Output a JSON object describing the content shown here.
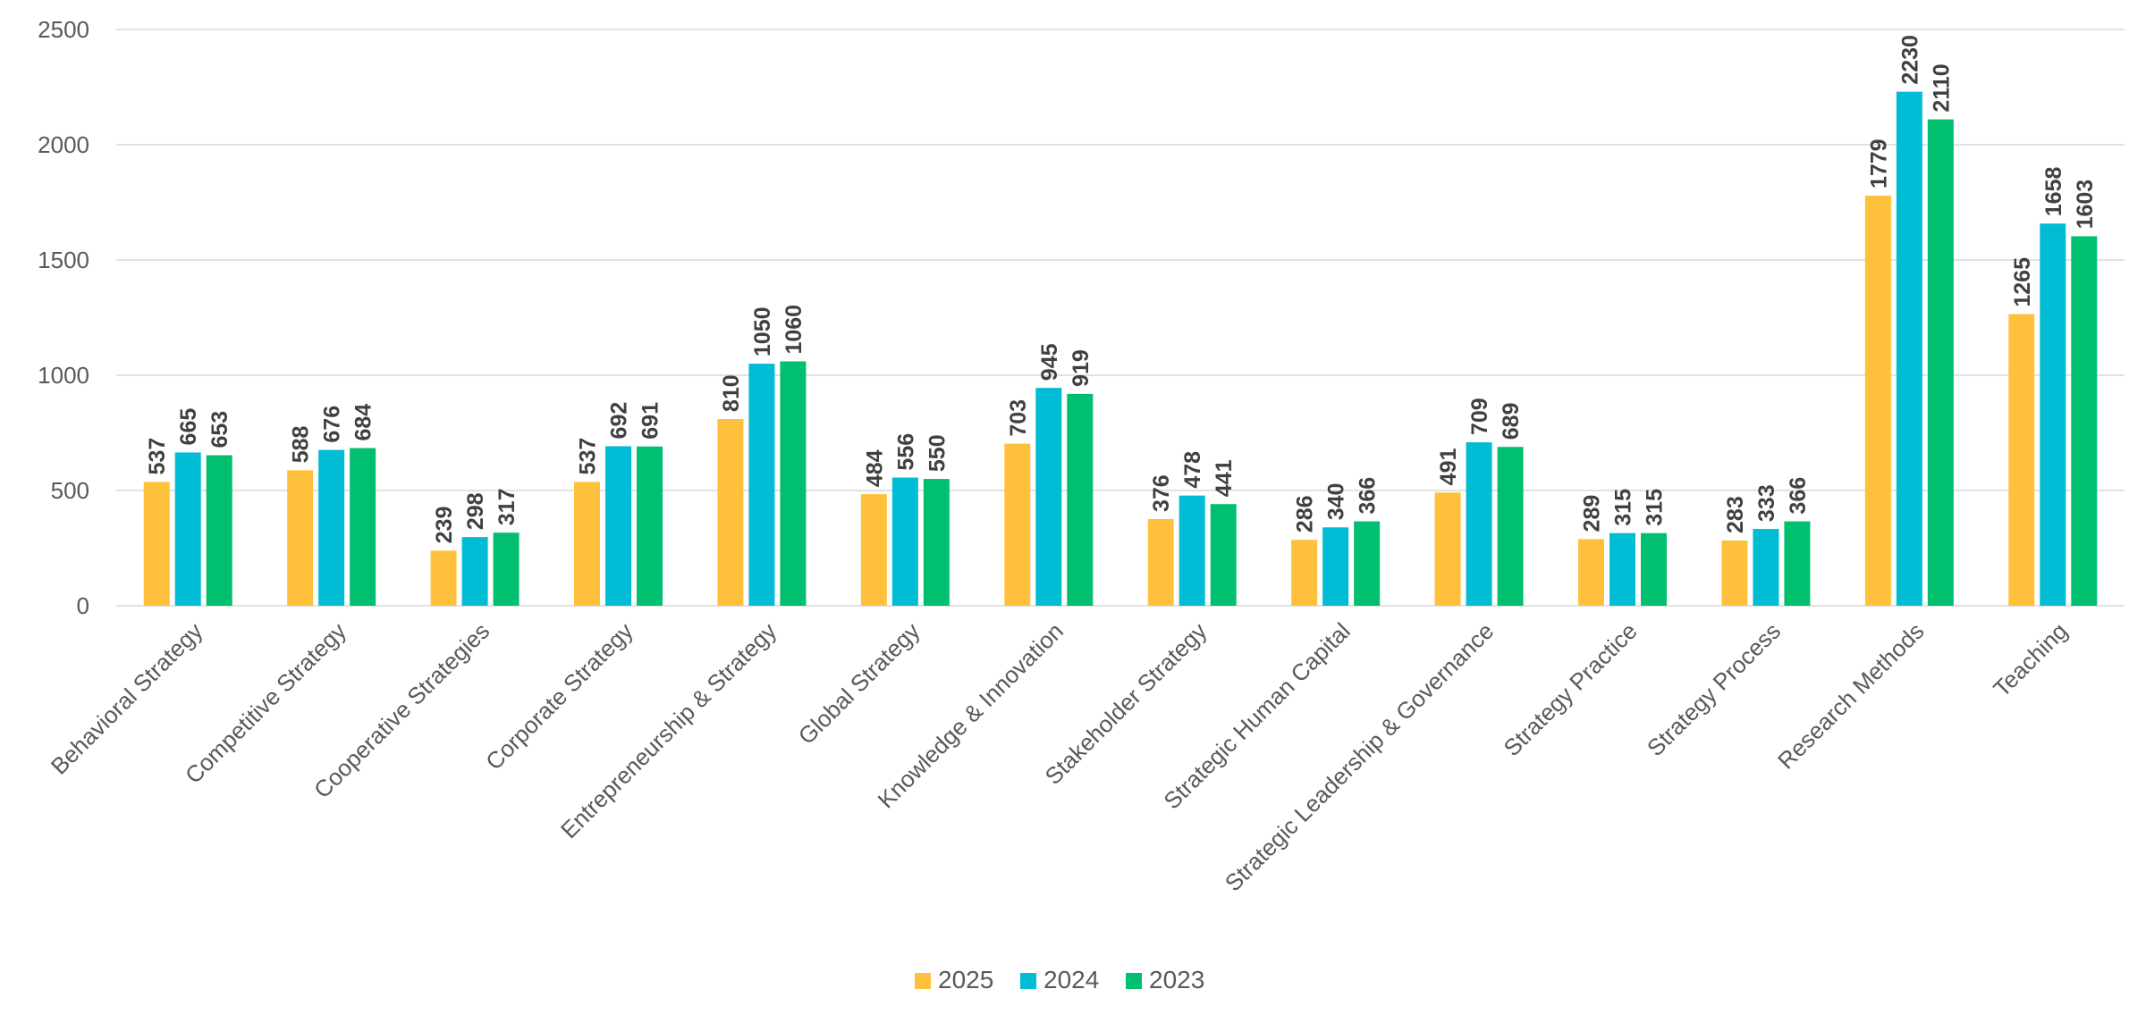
{
  "chart_data": {
    "type": "bar",
    "title": "",
    "xlabel": "",
    "ylabel": "",
    "ylim": [
      0,
      2500
    ],
    "yticks": [
      0,
      500,
      1000,
      1500,
      2000,
      2500
    ],
    "grid": true,
    "legend_position": "bottom",
    "categories": [
      "Behavioral Strategy",
      "Competitive Strategy",
      "Cooperative Strategies",
      "Corporate Strategy",
      "Entrepreneurship & Strategy",
      "Global Strategy",
      "Knowledge & Innovation",
      "Stakeholder Strategy",
      "Strategic Human Capital",
      "Strategic Leadership & Governance",
      "Strategy Practice",
      "Strategy Process",
      "Research Methods",
      "Teaching"
    ],
    "series": [
      {
        "name": "2025",
        "color": "#FFC13B",
        "values": [
          537,
          588,
          239,
          537,
          810,
          484,
          703,
          376,
          286,
          491,
          289,
          283,
          1779,
          1265
        ]
      },
      {
        "name": "2024",
        "color": "#00BCD4",
        "values": [
          665,
          676,
          298,
          692,
          1050,
          556,
          945,
          478,
          340,
          709,
          315,
          333,
          2230,
          1658
        ]
      },
      {
        "name": "2023",
        "color": "#00BF6F",
        "values": [
          653,
          684,
          317,
          691,
          1060,
          550,
          919,
          441,
          366,
          689,
          315,
          366,
          2110,
          1603
        ]
      }
    ]
  }
}
